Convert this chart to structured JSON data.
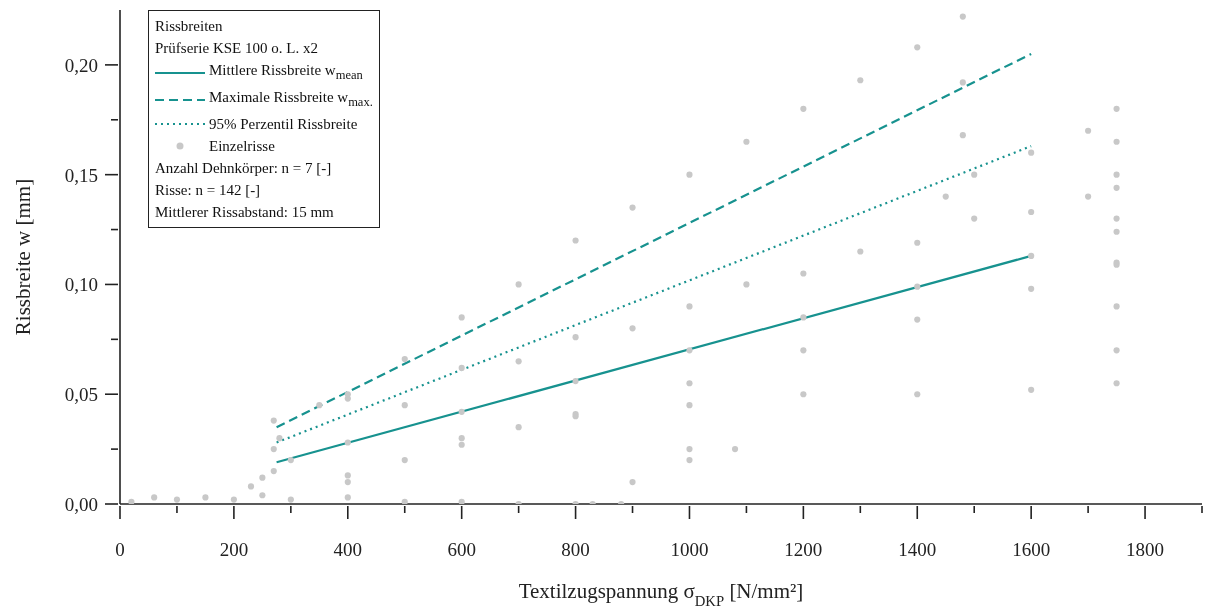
{
  "chart_data": {
    "type": "scatter",
    "xlabel": "Textilzugspannung σ$_{DKP}$ [N/mm²]",
    "ylabel": "Rissbreite w [mm]",
    "legend_title": "Rissbreiten\nPrüfserie KSE 100 o. L. x2",
    "annotations": [
      "Anzahl Dehnkörper: n = 7 [-]",
      "Risse: n = 142 [-]",
      "Mittlerer Rissabstand: 15 mm"
    ],
    "legend": "top left",
    "grid": false,
    "xlim": [
      0,
      1900
    ],
    "ylim": [
      0,
      0.225
    ],
    "xticks": [
      0,
      {
        "value": 100,
        "label": null
      },
      200,
      {
        "value": 300,
        "label": null
      },
      400,
      {
        "value": 500,
        "label": null
      },
      600,
      {
        "value": 700,
        "label": null
      },
      800,
      {
        "value": 900,
        "label": null
      },
      1000,
      {
        "value": 1100,
        "label": null
      },
      1200,
      {
        "value": 1300,
        "label": null
      },
      1400,
      {
        "value": 1500,
        "label": null
      },
      1600,
      {
        "value": 1700,
        "label": null
      },
      1800,
      {
        "value": 1900,
        "label": null
      }
    ],
    "yticks": [
      {
        "value": 0,
        "label": "0,00"
      },
      {
        "value": 0.025,
        "label": null
      },
      {
        "value": 0.05,
        "label": "0,05"
      },
      {
        "value": 0.075,
        "label": null
      },
      {
        "value": 0.1,
        "label": "0,10"
      },
      {
        "value": 0.125,
        "label": null
      },
      {
        "value": 0.15,
        "label": "0,15"
      },
      {
        "value": 0.175,
        "label": null
      },
      {
        "value": 0.2,
        "label": "0,20"
      }
    ],
    "series": [
      {
        "type": "line",
        "name": "Mittlere Rissbreite w$_{mean}$",
        "color": "#17928f",
        "line_style": "solid",
        "marker": "none",
        "x": [
          275,
          1600
        ],
        "values": [
          0.019,
          0.113
        ]
      },
      {
        "type": "line",
        "name": "Maximale Rissbreite w$_{max.}$",
        "color": "#17928f",
        "line_style": "dashed",
        "marker": "none",
        "x": [
          275,
          1600
        ],
        "values": [
          0.035,
          0.205
        ]
      },
      {
        "type": "line",
        "name": "95% Perzentil Rissbreite",
        "color": "#17928f",
        "line_style": "dotted",
        "marker": "none",
        "x": [
          275,
          1600
        ],
        "values": [
          0.028,
          0.163
        ]
      },
      {
        "type": "scatter",
        "name": "Einzelrisse",
        "color": "#c8c8c8",
        "marker": "circle",
        "x": [
          20,
          60,
          100,
          150,
          200,
          250,
          300,
          400,
          500,
          600,
          700,
          800,
          880,
          230,
          250,
          270,
          270,
          270,
          280,
          300,
          350,
          400,
          500,
          600,
          700,
          800,
          900,
          1000,
          1100,
          1200,
          1300,
          1400,
          1480,
          1480,
          1480,
          1450,
          400,
          400,
          400,
          600,
          600,
          600,
          800,
          800,
          800,
          1000,
          1000,
          1000,
          1200,
          1200,
          1200,
          1400,
          1400,
          1400,
          1600,
          1600,
          1600,
          1750,
          1750,
          1750,
          400,
          500,
          600,
          700,
          800,
          1000,
          1200,
          1400,
          1600,
          1750,
          830,
          900,
          1000,
          1000,
          1080,
          1750,
          1750,
          1750,
          1750,
          1750,
          1750,
          1750,
          1700,
          1600,
          1500,
          500,
          700,
          900,
          1100,
          1300,
          1500,
          1700
        ],
        "values": [
          0.001,
          0.003,
          0.002,
          0.003,
          0.002,
          0.004,
          0.002,
          0.003,
          0.001,
          0.001,
          0.0,
          0.0,
          0.0,
          0.008,
          0.012,
          0.015,
          0.025,
          0.038,
          0.03,
          0.02,
          0.045,
          0.05,
          0.066,
          0.085,
          0.1,
          0.12,
          0.135,
          0.15,
          0.165,
          0.18,
          0.193,
          0.208,
          0.222,
          0.192,
          0.168,
          0.14,
          0.048,
          0.028,
          0.013,
          0.062,
          0.042,
          0.027,
          0.076,
          0.056,
          0.041,
          0.09,
          0.07,
          0.055,
          0.105,
          0.085,
          0.07,
          0.119,
          0.099,
          0.084,
          0.133,
          0.113,
          0.098,
          0.144,
          0.124,
          0.109,
          0.01,
          0.02,
          0.03,
          0.035,
          0.04,
          0.045,
          0.05,
          0.05,
          0.052,
          0.055,
          0.0,
          0.01,
          0.02,
          0.025,
          0.025,
          0.07,
          0.09,
          0.11,
          0.13,
          0.15,
          0.165,
          0.18,
          0.17,
          0.16,
          0.15,
          0.045,
          0.065,
          0.08,
          0.1,
          0.115,
          0.13,
          0.14
        ]
      }
    ]
  }
}
